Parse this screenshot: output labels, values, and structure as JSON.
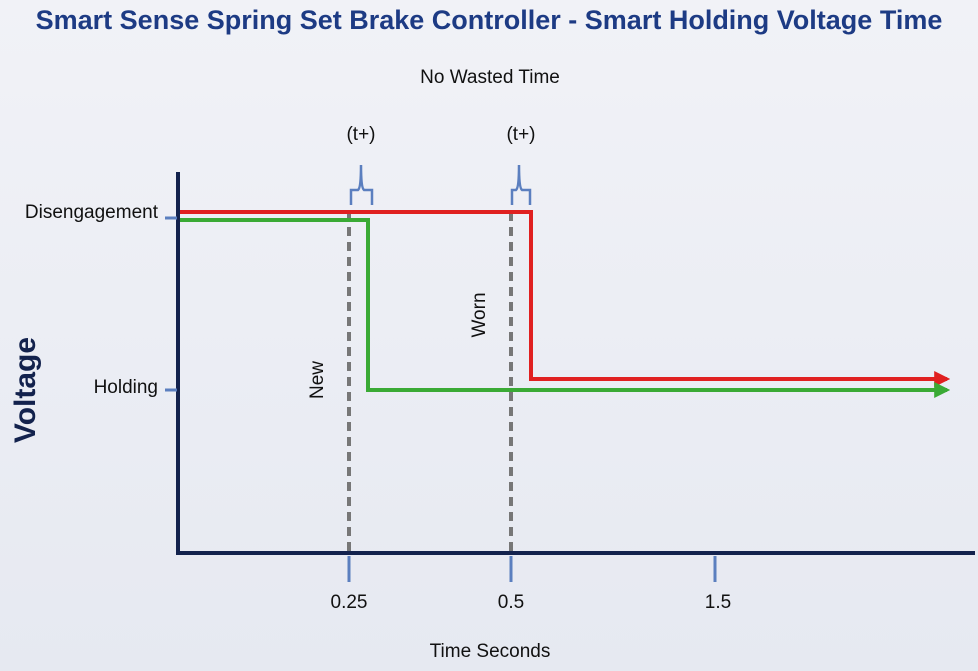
{
  "title": "Smart Sense Spring Set Brake Controller - Smart Holding Voltage Time",
  "subtitle": "No Wasted Time",
  "y_axis": {
    "label": "Voltage",
    "levels": [
      "Disengagement",
      "Holding"
    ]
  },
  "x_axis": {
    "label": "Time Seconds",
    "ticks": [
      "0.25",
      "0.5",
      "1.5"
    ]
  },
  "annotations": [
    "(t+)",
    "(t+)"
  ],
  "curves": [
    "New",
    "Worn"
  ]
}
